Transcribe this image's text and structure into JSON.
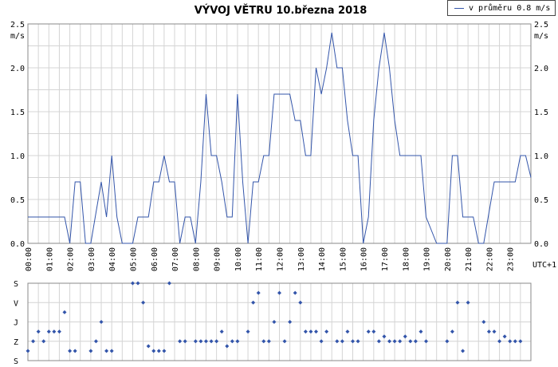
{
  "chart_data": [
    {
      "type": "line",
      "title": "VÝVOJ VĚTRU  10.března 2018",
      "ylabel": "m/s",
      "xlabel": "",
      "x_unit_label": "UTC+1",
      "ylim": [
        0,
        2.5
      ],
      "y_ticks": [
        "0.0",
        "0.5",
        "1.0",
        "1.5",
        "2.0",
        "2.5"
      ],
      "x_ticks": [
        "00:00",
        "01:00",
        "02:00",
        "03:00",
        "04:00",
        "05:00",
        "06:00",
        "07:00",
        "08:00",
        "09:00",
        "10:00",
        "11:00",
        "12:00",
        "13:00",
        "14:00",
        "15:00",
        "16:00",
        "17:00",
        "18:00",
        "19:00",
        "20:00",
        "21:00",
        "22:00",
        "23:00"
      ],
      "x_hours_range": [
        0,
        24
      ],
      "grid": true,
      "legend_placement": "top-right",
      "series": [
        {
          "name": "v průměru 0.8 m/s",
          "color": "#3355aa",
          "points": [
            [
              0,
              0.3
            ],
            [
              0.25,
              0.3
            ],
            [
              0.5,
              0.3
            ],
            [
              0.75,
              0.3
            ],
            [
              1,
              0.3
            ],
            [
              1.25,
              0.3
            ],
            [
              1.5,
              0.3
            ],
            [
              1.75,
              0.3
            ],
            [
              2,
              0
            ],
            [
              2.25,
              0.7
            ],
            [
              2.5,
              0.7
            ],
            [
              2.75,
              0
            ],
            [
              3,
              0
            ],
            [
              3.25,
              0.35
            ],
            [
              3.5,
              0.7
            ],
            [
              3.75,
              0.3
            ],
            [
              4,
              1.0
            ],
            [
              4.25,
              0.3
            ],
            [
              4.5,
              0
            ],
            [
              4.75,
              0
            ],
            [
              5,
              0
            ],
            [
              5.25,
              0.3
            ],
            [
              5.5,
              0.3
            ],
            [
              5.75,
              0.3
            ],
            [
              6,
              0.7
            ],
            [
              6.25,
              0.7
            ],
            [
              6.5,
              1.0
            ],
            [
              6.75,
              0.7
            ],
            [
              7,
              0.7
            ],
            [
              7.25,
              0
            ],
            [
              7.5,
              0.3
            ],
            [
              7.75,
              0.3
            ],
            [
              8,
              0
            ],
            [
              8.25,
              0.7
            ],
            [
              8.5,
              1.7
            ],
            [
              8.75,
              1.0
            ],
            [
              9,
              1.0
            ],
            [
              9.25,
              0.7
            ],
            [
              9.5,
              0.3
            ],
            [
              9.75,
              0.3
            ],
            [
              10,
              1.7
            ],
            [
              10.25,
              0.7
            ],
            [
              10.5,
              0
            ],
            [
              10.75,
              0.7
            ],
            [
              11,
              0.7
            ],
            [
              11.25,
              1.0
            ],
            [
              11.5,
              1.0
            ],
            [
              11.75,
              1.7
            ],
            [
              12,
              1.7
            ],
            [
              12.25,
              1.7
            ],
            [
              12.5,
              1.7
            ],
            [
              12.75,
              1.4
            ],
            [
              13,
              1.4
            ],
            [
              13.25,
              1.0
            ],
            [
              13.5,
              1.0
            ],
            [
              13.75,
              2.0
            ],
            [
              14,
              1.7
            ],
            [
              14.25,
              2.0
            ],
            [
              14.5,
              2.4
            ],
            [
              14.75,
              2.0
            ],
            [
              15,
              2.0
            ],
            [
              15.25,
              1.4
            ],
            [
              15.5,
              1.0
            ],
            [
              15.75,
              1.0
            ],
            [
              16,
              0
            ],
            [
              16.25,
              0.3
            ],
            [
              16.5,
              1.4
            ],
            [
              16.75,
              2.0
            ],
            [
              17,
              2.4
            ],
            [
              17.25,
              2.0
            ],
            [
              17.5,
              1.4
            ],
            [
              17.75,
              1.0
            ],
            [
              18,
              1.0
            ],
            [
              18.25,
              1.0
            ],
            [
              18.5,
              1.0
            ],
            [
              18.75,
              1.0
            ],
            [
              19,
              0.3
            ],
            [
              19.25,
              0.15
            ],
            [
              19.5,
              0
            ],
            [
              19.75,
              0
            ],
            [
              20,
              0
            ],
            [
              20.25,
              1.0
            ],
            [
              20.5,
              1.0
            ],
            [
              20.75,
              0.3
            ],
            [
              21,
              0.3
            ],
            [
              21.25,
              0.3
            ],
            [
              21.5,
              0
            ],
            [
              21.75,
              0
            ],
            [
              22,
              0.35
            ],
            [
              22.25,
              0.7
            ],
            [
              22.5,
              0.7
            ],
            [
              22.75,
              0.7
            ],
            [
              23,
              0.7
            ],
            [
              23.25,
              0.7
            ],
            [
              23.5,
              1.0
            ],
            [
              23.75,
              1.0
            ],
            [
              24,
              0.75
            ]
          ]
        }
      ]
    },
    {
      "type": "scatter",
      "title": "",
      "ylabel": "",
      "x_hours_range": [
        0,
        24
      ],
      "y_categories": [
        "S",
        "V",
        "J",
        "Z",
        "S"
      ],
      "grid": true,
      "series": [
        {
          "color": "#3355aa",
          "points": [
            [
              0,
              3.5
            ],
            [
              0.25,
              3
            ],
            [
              0.5,
              2.5
            ],
            [
              0.75,
              3
            ],
            [
              1,
              2.5
            ],
            [
              1.25,
              2.5
            ],
            [
              1.5,
              2.5
            ],
            [
              1.75,
              1.5
            ],
            [
              2,
              3.5
            ],
            [
              2.25,
              3.5
            ],
            [
              3,
              3.5
            ],
            [
              3.25,
              3
            ],
            [
              3.5,
              2
            ],
            [
              3.75,
              3.5
            ],
            [
              4,
              3.5
            ],
            [
              5,
              0
            ],
            [
              5.25,
              0
            ],
            [
              5.5,
              1
            ],
            [
              5.75,
              3.25
            ],
            [
              6,
              3.5
            ],
            [
              6.25,
              3.5
            ],
            [
              6.5,
              3.5
            ],
            [
              6.75,
              0
            ],
            [
              7.25,
              3
            ],
            [
              7.5,
              3
            ],
            [
              8,
              3
            ],
            [
              8.25,
              3
            ],
            [
              8.5,
              3
            ],
            [
              8.75,
              3
            ],
            [
              9,
              3
            ],
            [
              9.25,
              2.5
            ],
            [
              9.5,
              3.25
            ],
            [
              9.75,
              3
            ],
            [
              10,
              3
            ],
            [
              10.5,
              2.5
            ],
            [
              10.75,
              1
            ],
            [
              11,
              0.5
            ],
            [
              11.25,
              3
            ],
            [
              11.5,
              3
            ],
            [
              11.75,
              2
            ],
            [
              12,
              0.5
            ],
            [
              12.25,
              3
            ],
            [
              12.5,
              2
            ],
            [
              12.75,
              0.5
            ],
            [
              13,
              1
            ],
            [
              13.25,
              2.5
            ],
            [
              13.5,
              2.5
            ],
            [
              13.75,
              2.5
            ],
            [
              14,
              3
            ],
            [
              14.25,
              2.5
            ],
            [
              14.75,
              3
            ],
            [
              15,
              3
            ],
            [
              15.25,
              2.5
            ],
            [
              15.5,
              3
            ],
            [
              15.75,
              3
            ],
            [
              16.25,
              2.5
            ],
            [
              16.5,
              2.5
            ],
            [
              16.75,
              3
            ],
            [
              17,
              2.75
            ],
            [
              17.25,
              3
            ],
            [
              17.5,
              3
            ],
            [
              17.75,
              3
            ],
            [
              18,
              2.75
            ],
            [
              18.25,
              3
            ],
            [
              18.5,
              3
            ],
            [
              18.75,
              2.5
            ],
            [
              19,
              3
            ],
            [
              20,
              3
            ],
            [
              20.25,
              2.5
            ],
            [
              20.5,
              1
            ],
            [
              20.75,
              3.5
            ],
            [
              21,
              1
            ],
            [
              21.75,
              2
            ],
            [
              22,
              2.5
            ],
            [
              22.25,
              2.5
            ],
            [
              22.5,
              3
            ],
            [
              22.75,
              2.75
            ],
            [
              23,
              3
            ],
            [
              23.25,
              3
            ],
            [
              23.5,
              3
            ]
          ]
        }
      ]
    }
  ]
}
